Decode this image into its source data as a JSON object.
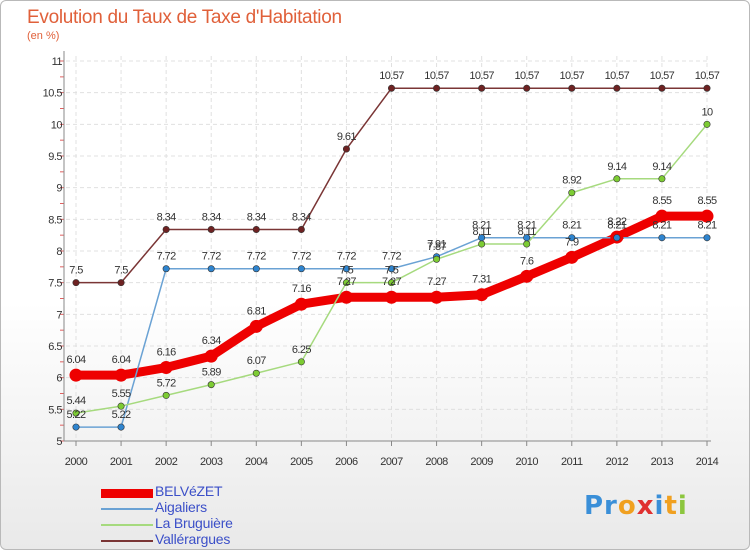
{
  "title": "Evolution du Taux de Taxe d'Habitation",
  "subtitle": "(en %)",
  "logo": {
    "parts": [
      {
        "t": "Pr",
        "c": "#3a8fd8"
      },
      {
        "t": "o",
        "c": "#f0a020"
      },
      {
        "t": "x",
        "c": "#e03030"
      },
      {
        "t": "i",
        "c": "#3a8fd8"
      },
      {
        "t": "t",
        "c": "#f0a020"
      },
      {
        "t": "i",
        "c": "#8cc63e"
      }
    ]
  },
  "chart_data": {
    "type": "line",
    "title": "Evolution du Taux de Taxe d'Habitation",
    "ylabel": "(en %)",
    "xlabel": "",
    "x": [
      2000,
      2001,
      2002,
      2003,
      2004,
      2005,
      2006,
      2007,
      2008,
      2009,
      2010,
      2011,
      2012,
      2013,
      2014
    ],
    "ylim": [
      5,
      11
    ],
    "yticks": [
      5,
      5.5,
      6,
      6.5,
      7,
      7.5,
      8,
      8.5,
      9,
      9.5,
      10,
      10.5,
      11
    ],
    "grid": true,
    "legend_position": "bottom-left",
    "series": [
      {
        "name": "BELVéZET",
        "color": "#ee0000",
        "point_color": "#ee0000",
        "style": "thick",
        "values": [
          6.04,
          6.04,
          6.16,
          6.34,
          6.81,
          7.16,
          7.27,
          7.27,
          7.27,
          7.31,
          7.6,
          7.9,
          8.22,
          8.55,
          8.55
        ],
        "labels": [
          "6.04",
          "6.04",
          "6.16",
          "6.34",
          "6.81",
          "7.16",
          "7.27",
          "7.27",
          "7.27",
          "7.31",
          "7.6",
          "7.9",
          "8.22",
          "8.55",
          "8.55"
        ]
      },
      {
        "name": "Aigaliers",
        "color": "#6aa2d4",
        "point_color": "#2e84cf",
        "style": "thin",
        "values": [
          5.22,
          5.22,
          7.72,
          7.72,
          7.72,
          7.72,
          7.72,
          7.72,
          7.91,
          8.21,
          8.21,
          8.21,
          8.21,
          8.21,
          8.21
        ],
        "labels": [
          "5.22",
          "5.22",
          "7.72",
          "7.72",
          "7.72",
          "7.72",
          "7.72",
          "7.72",
          "7.91",
          "8.21",
          "8.21",
          "8.21",
          "8.21",
          "8.21",
          "8.21"
        ]
      },
      {
        "name": "La Bruguière",
        "color": "#a6da7e",
        "point_color": "#7dcc33",
        "style": "thin",
        "values": [
          5.44,
          5.55,
          5.72,
          5.89,
          6.07,
          6.25,
          7.5,
          7.5,
          7.87,
          8.11,
          8.11,
          8.92,
          9.14,
          9.14,
          10
        ],
        "labels": [
          "5.44",
          "5.55",
          "5.72",
          "5.89",
          "6.07",
          "6.25",
          "7.5",
          "7.5",
          "7.87",
          "8.11",
          "8.11",
          "8.92",
          "9.14",
          "9.14",
          "10"
        ]
      },
      {
        "name": "Vallérargues",
        "color": "#7a3535",
        "point_color": "#6e2222",
        "style": "thin",
        "values": [
          7.5,
          7.5,
          8.34,
          8.34,
          8.34,
          8.34,
          9.61,
          10.57,
          10.57,
          10.57,
          10.57,
          10.57,
          10.57,
          10.57,
          10.57
        ],
        "labels": [
          "7.5",
          "7.5",
          "8.34",
          "8.34",
          "8.34",
          "8.34",
          "9.61",
          "10.57",
          "10.57",
          "10.57",
          "10.57",
          "10.57",
          "10.57",
          "10.57",
          "10.57"
        ]
      }
    ]
  }
}
